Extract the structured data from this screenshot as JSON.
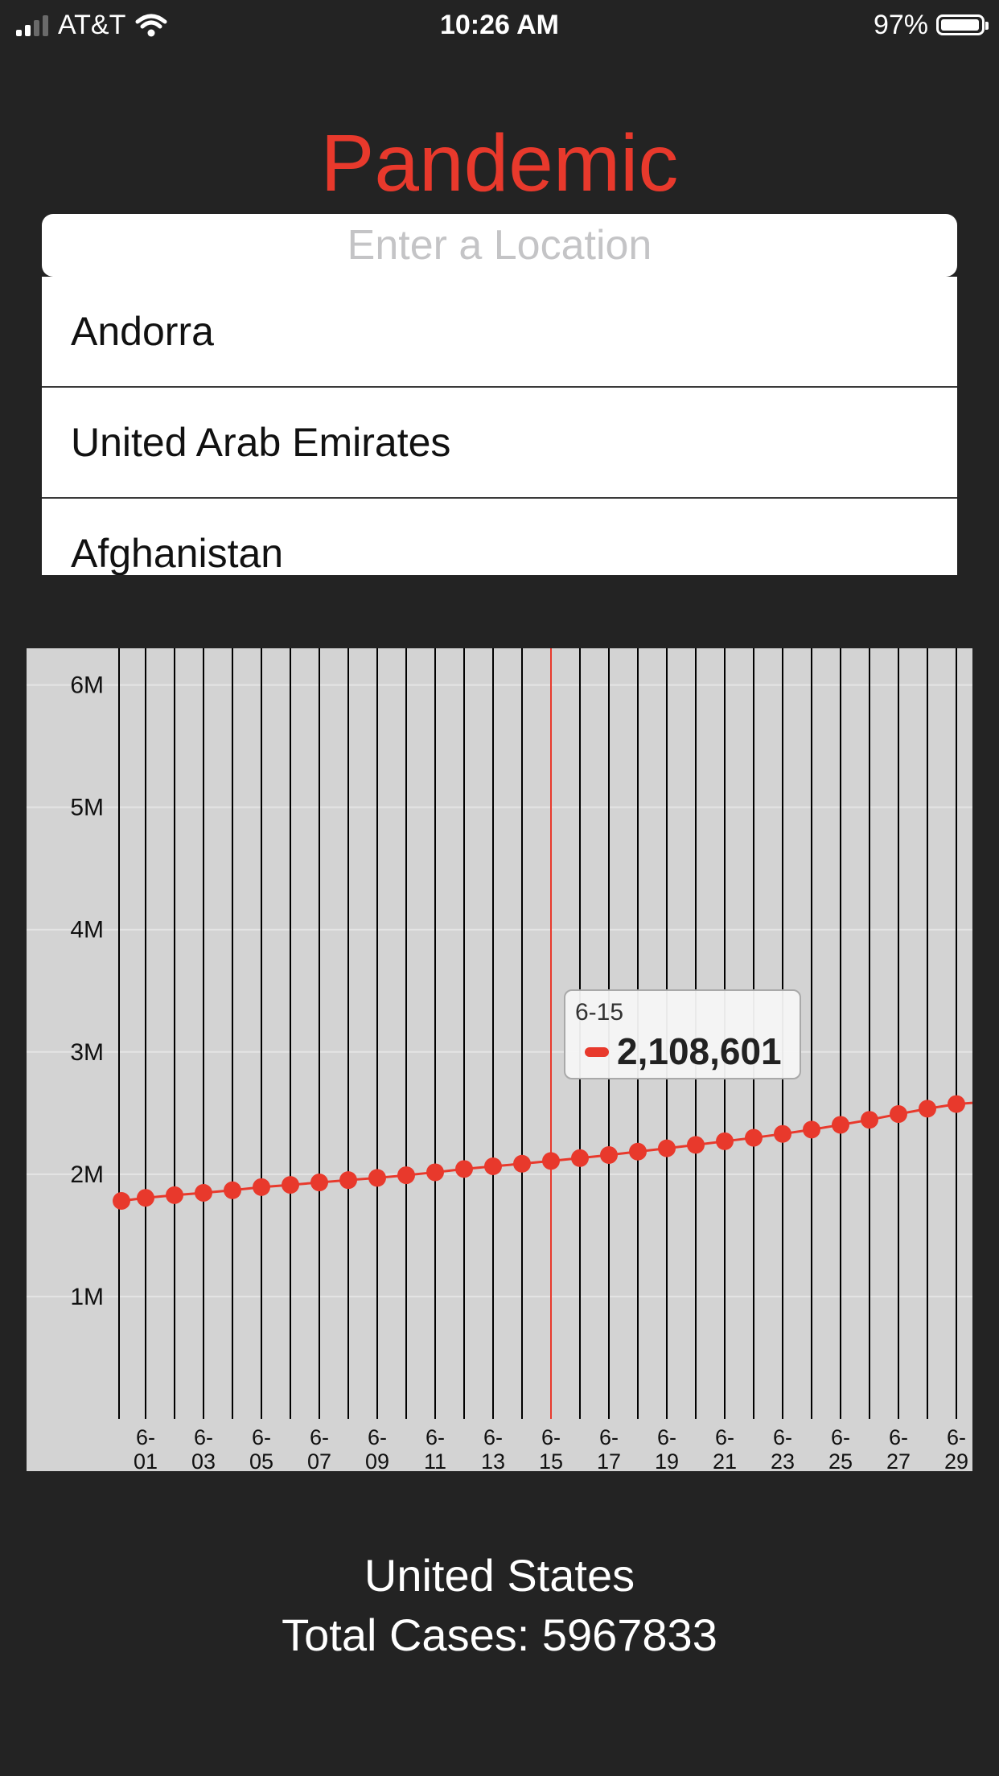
{
  "status_bar": {
    "carrier": "AT&T",
    "time": "10:26 AM",
    "battery_percent": "97%",
    "battery_level": 0.97,
    "icons": [
      "signal-icon",
      "wifi-icon",
      "battery-icon"
    ]
  },
  "app": {
    "title": "Pandemic"
  },
  "search": {
    "placeholder": "Enter a Location",
    "value": ""
  },
  "suggestions": [
    {
      "label": "Andorra"
    },
    {
      "label": "United Arab Emirates"
    },
    {
      "label": "Afghanistan"
    }
  ],
  "chart_data": {
    "type": "line",
    "x": [
      "6-01",
      "6-02",
      "6-03",
      "6-04",
      "6-05",
      "6-06",
      "6-07",
      "6-08",
      "6-09",
      "6-10",
      "6-11",
      "6-12",
      "6-13",
      "6-14",
      "6-15",
      "6-16",
      "6-17",
      "6-18",
      "6-19",
      "6-20",
      "6-21",
      "6-22",
      "6-23",
      "6-24",
      "6-25",
      "6-26",
      "6-27",
      "6-28",
      "6-29"
    ],
    "x_tick_labels": [
      {
        "date": "6-01",
        "top": "6-",
        "bottom": "01"
      },
      {
        "date": "6-03",
        "top": "6-",
        "bottom": "03"
      },
      {
        "date": "6-05",
        "top": "6-",
        "bottom": "05"
      },
      {
        "date": "6-07",
        "top": "6-",
        "bottom": "07"
      },
      {
        "date": "6-09",
        "top": "6-",
        "bottom": "09"
      },
      {
        "date": "6-11",
        "top": "6-",
        "bottom": "11"
      },
      {
        "date": "6-13",
        "top": "6-",
        "bottom": "13"
      },
      {
        "date": "6-15",
        "top": "6-",
        "bottom": "15"
      },
      {
        "date": "6-17",
        "top": "6-",
        "bottom": "17"
      },
      {
        "date": "6-19",
        "top": "6-",
        "bottom": "19"
      },
      {
        "date": "6-21",
        "top": "6-",
        "bottom": "21"
      },
      {
        "date": "6-23",
        "top": "6-",
        "bottom": "23"
      },
      {
        "date": "6-25",
        "top": "6-",
        "bottom": "25"
      },
      {
        "date": "6-27",
        "top": "6-",
        "bottom": "27"
      },
      {
        "date": "6-29",
        "top": "6-",
        "bottom": "29"
      }
    ],
    "y_tick_labels": [
      {
        "value": 1000000,
        "label": "1M"
      },
      {
        "value": 2000000,
        "label": "2M"
      },
      {
        "value": 3000000,
        "label": "3M"
      },
      {
        "value": 4000000,
        "label": "4M"
      },
      {
        "value": 5000000,
        "label": "5M"
      },
      {
        "value": 6000000,
        "label": "6M"
      }
    ],
    "ylim": [
      0,
      6300000
    ],
    "leading_value": 1782000,
    "trailing_value": 2584000,
    "series": [
      {
        "color": "#e8392c",
        "values": [
          1807000,
          1829000,
          1848000,
          1869000,
          1895000,
          1913000,
          1933000,
          1952000,
          1970000,
          1992000,
          2016000,
          2043000,
          2065000,
          2086000,
          2108601,
          2132000,
          2157000,
          2185000,
          2212000,
          2240000,
          2270000,
          2298000,
          2330000,
          2365000,
          2404000,
          2445000,
          2492000,
          2536000,
          2574000
        ]
      }
    ],
    "highlight": {
      "x": "6-15",
      "value": "2,108,601"
    },
    "grid": true,
    "highlight_color": "#e8392c"
  },
  "footer": {
    "country": "United States",
    "total_cases_text": "Total Cases: 5967833"
  }
}
